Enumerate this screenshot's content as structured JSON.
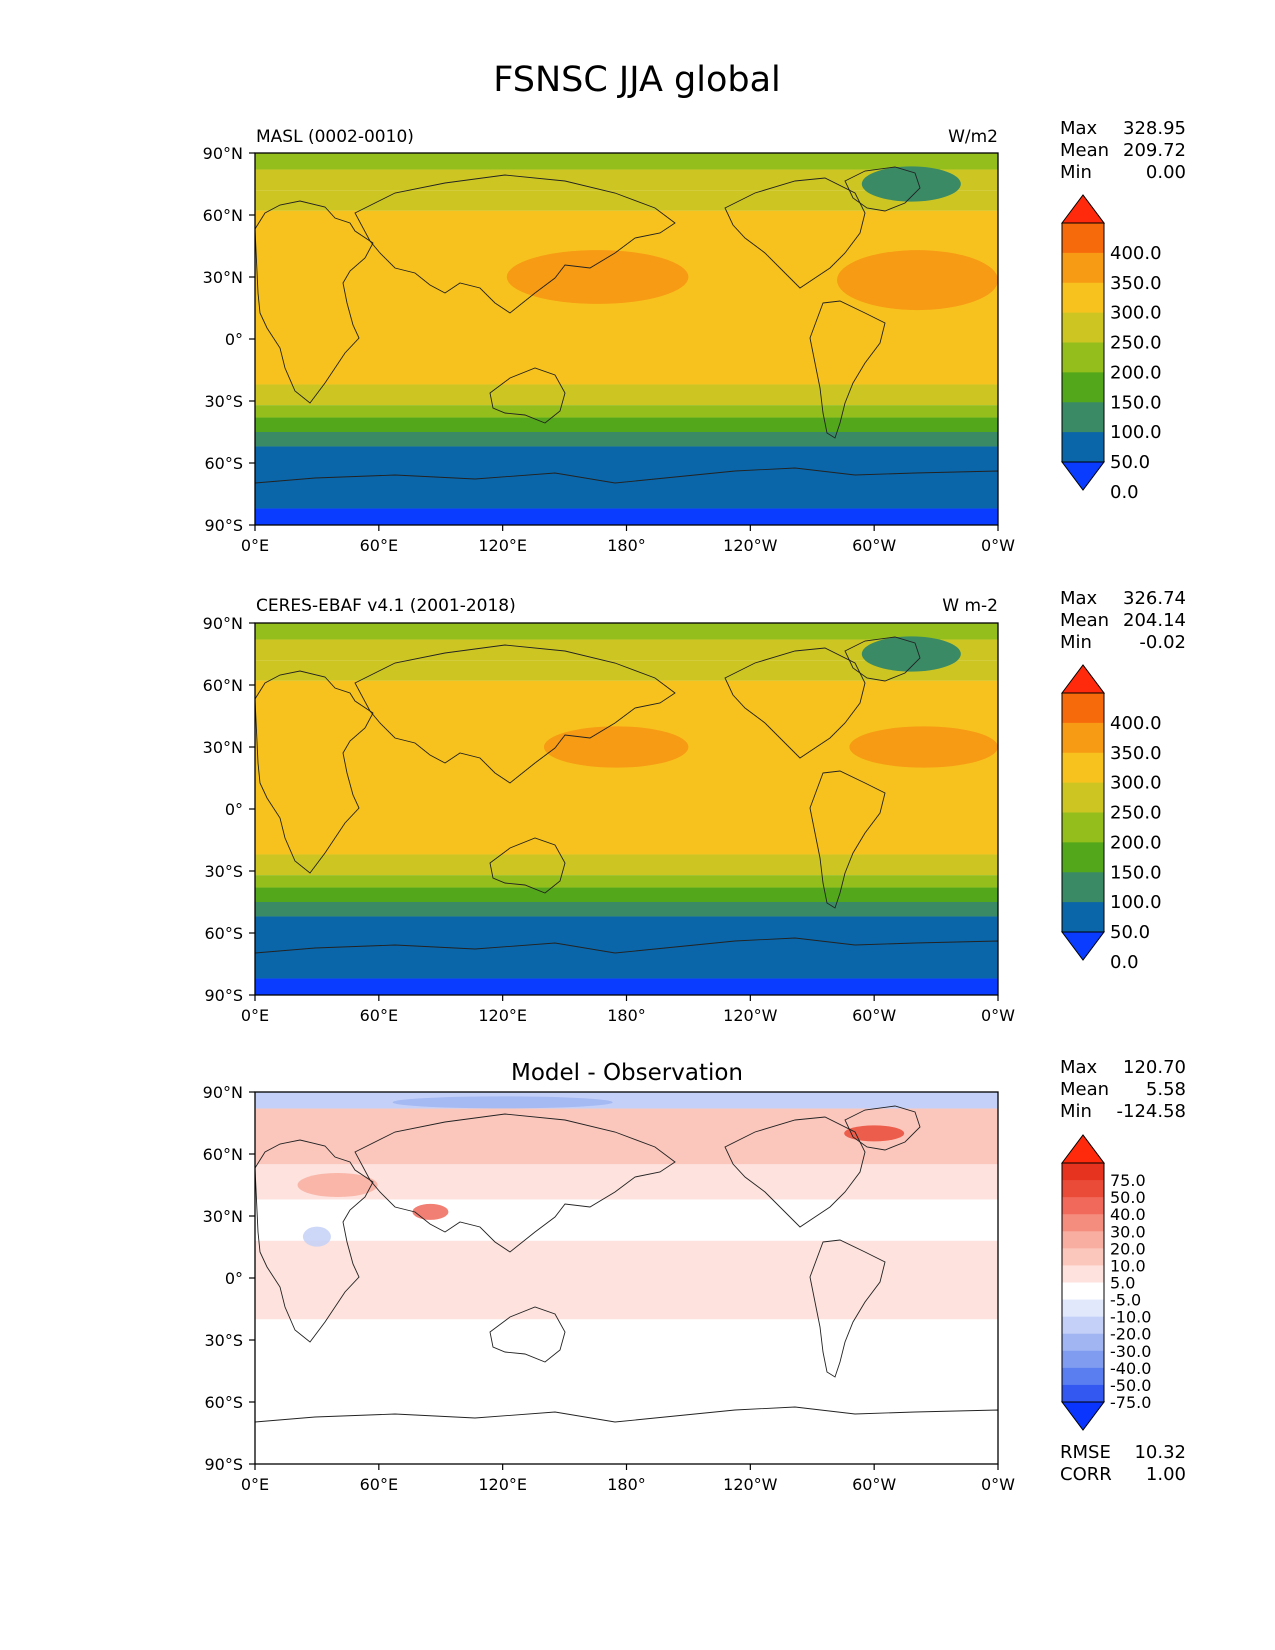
{
  "title": "FSNSC JJA global",
  "colors": {
    "abs": [
      "#0a3cff",
      "#0a66a8",
      "#3a8a66",
      "#52a81a",
      "#94be1c",
      "#cdc622",
      "#f7c21e",
      "#f79a14",
      "#f76a0c",
      "#ff2a0c"
    ],
    "diff": [
      "#0a35ff",
      "#3358f2",
      "#5a7ef0",
      "#7f9cf0",
      "#a0b5f2",
      "#c4d0f7",
      "#e2e8fb",
      "#ffffff",
      "#fde2dd",
      "#fbc7bd",
      "#f8aea0",
      "#f58d7f",
      "#f0695a",
      "#ea4a38",
      "#e6331f",
      "#ff2a0c"
    ],
    "land_outline": "#222222"
  },
  "axes": {
    "lat_ticks": [
      "90°N",
      "60°N",
      "30°N",
      "0°",
      "30°S",
      "60°S",
      "90°S"
    ],
    "lon_ticks": [
      "0°E",
      "60°E",
      "120°E",
      "180°",
      "120°W",
      "60°W",
      "0°W"
    ]
  },
  "chart_data": [
    {
      "type": "heatmap",
      "title": "MASL (0002-0010)",
      "units": "W/m2",
      "stats": [
        {
          "label": "Max",
          "value": "328.95"
        },
        {
          "label": "Mean",
          "value": "209.72"
        },
        {
          "label": "Min",
          "value": "0.00"
        }
      ],
      "levels": [
        "400.0",
        "350.0",
        "300.0",
        "250.0",
        "200.0",
        "150.0",
        "100.0",
        "50.0",
        "0.0"
      ],
      "lat_bands": [
        {
          "lat": [
            82,
            90
          ],
          "value": 150
        },
        {
          "lat": [
            72,
            82
          ],
          "value": 200
        },
        {
          "lat": [
            62,
            72
          ],
          "value": 225
        },
        {
          "lat": [
            -22,
            62
          ],
          "value": 275
        },
        {
          "lat": [
            -32,
            -22
          ],
          "value": 225
        },
        {
          "lat": [
            -38,
            -32
          ],
          "value": 175
        },
        {
          "lat": [
            -45,
            -38
          ],
          "value": 125
        },
        {
          "lat": [
            -52,
            -45
          ],
          "value": 75
        },
        {
          "lat": [
            -82,
            -52
          ],
          "value": 25
        },
        {
          "lat": [
            -90,
            -82
          ],
          "value": -25
        }
      ],
      "ocean_max": [
        {
          "lon": [
            122,
            210
          ],
          "lat": [
            17,
            43
          ],
          "value": 325
        },
        {
          "lon": [
            282,
            360
          ],
          "lat": [
            14,
            43
          ],
          "value": 325
        }
      ],
      "greenland_value": 75
    },
    {
      "type": "heatmap",
      "title": "CERES-EBAF v4.1 (2001-2018)",
      "units": "W m-2",
      "stats": [
        {
          "label": "Max",
          "value": "326.74"
        },
        {
          "label": "Mean",
          "value": "204.14"
        },
        {
          "label": "Min",
          "value": "-0.02"
        }
      ],
      "levels": [
        "400.0",
        "350.0",
        "300.0",
        "250.0",
        "200.0",
        "150.0",
        "100.0",
        "50.0",
        "0.0"
      ],
      "lat_bands": [
        {
          "lat": [
            82,
            90
          ],
          "value": 150
        },
        {
          "lat": [
            72,
            82
          ],
          "value": 200
        },
        {
          "lat": [
            62,
            72
          ],
          "value": 225
        },
        {
          "lat": [
            -22,
            62
          ],
          "value": 275
        },
        {
          "lat": [
            -32,
            -22
          ],
          "value": 225
        },
        {
          "lat": [
            -38,
            -32
          ],
          "value": 175
        },
        {
          "lat": [
            -45,
            -38
          ],
          "value": 125
        },
        {
          "lat": [
            -52,
            -45
          ],
          "value": 75
        },
        {
          "lat": [
            -82,
            -52
          ],
          "value": 25
        },
        {
          "lat": [
            -90,
            -82
          ],
          "value": -25
        }
      ],
      "ocean_max": [
        {
          "lon": [
            140,
            210
          ],
          "lat": [
            20,
            40
          ],
          "value": 325
        },
        {
          "lon": [
            288,
            360
          ],
          "lat": [
            20,
            40
          ],
          "value": 325
        }
      ],
      "greenland_value": 75
    },
    {
      "type": "heatmap",
      "title": "Model - Observation",
      "units": "",
      "stats": [
        {
          "label": "Max",
          "value": "120.70"
        },
        {
          "label": "Mean",
          "value": "5.58"
        },
        {
          "label": "Min",
          "value": "-124.58"
        }
      ],
      "levels": [
        "75.0",
        "50.0",
        "40.0",
        "30.0",
        "20.0",
        "10.0",
        "5.0",
        "-5.0",
        "-10.0",
        "-20.0",
        "-30.0",
        "-40.0",
        "-50.0",
        "-75.0"
      ],
      "metrics": [
        {
          "label": "RMSE",
          "value": "10.32"
        },
        {
          "label": "CORR",
          "value": "1.00"
        }
      ],
      "lat_bands": [
        {
          "lat": [
            82,
            90
          ],
          "value": -12
        },
        {
          "lat": [
            55,
            82
          ],
          "value": 15
        },
        {
          "lat": [
            38,
            55
          ],
          "value": 8
        },
        {
          "lat": [
            18,
            38
          ],
          "value": 3
        },
        {
          "lat": [
            -8,
            18
          ],
          "value": 8
        },
        {
          "lat": [
            -20,
            -8
          ],
          "value": 6
        },
        {
          "lat": [
            -90,
            -20
          ],
          "value": 0
        }
      ]
    }
  ]
}
